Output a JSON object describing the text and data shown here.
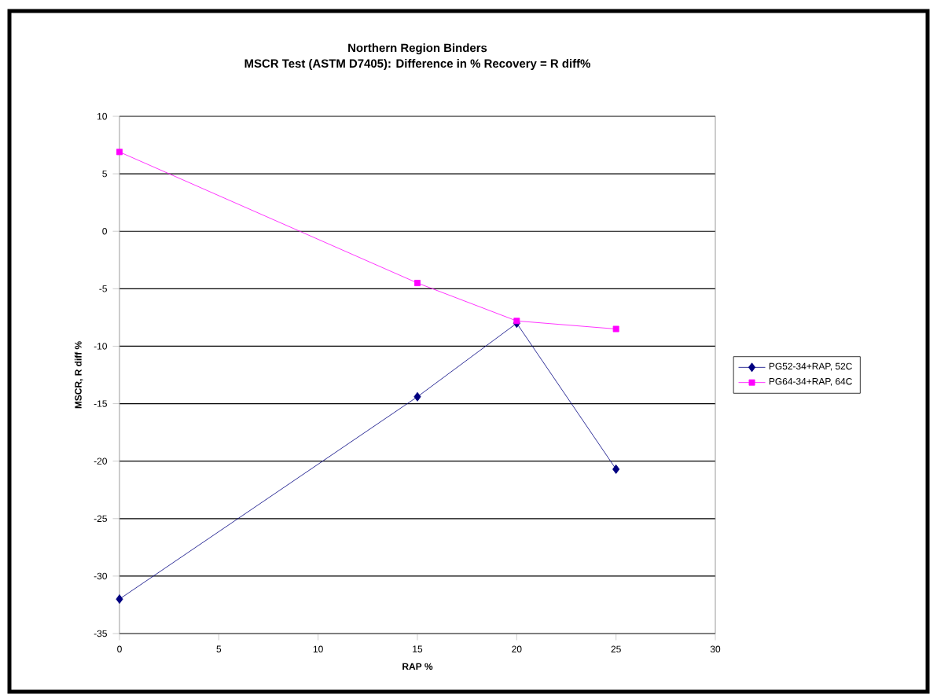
{
  "chart_data": {
    "type": "line",
    "title": "Northern Region Binders",
    "subtitle": "MSCR Test (ASTM D7405): Difference in % Recovery = R diff%",
    "xlabel": "RAP %",
    "ylabel": "MSCR, R diff %",
    "x": [
      0,
      15,
      20,
      25
    ],
    "series": [
      {
        "name": "PG52-34+RAP, 52C",
        "color": "#000080",
        "marker": "diamond",
        "values": [
          -32,
          -14.4,
          -8.0,
          -20.7
        ]
      },
      {
        "name": "PG64-34+RAP, 64C",
        "color": "#ff00ff",
        "marker": "square",
        "values": [
          6.9,
          -4.5,
          -7.8,
          -8.5
        ]
      }
    ],
    "xlim": [
      0,
      30
    ],
    "xticks": [
      0,
      5,
      10,
      15,
      20,
      25,
      30
    ],
    "ylim": [
      -35,
      10
    ],
    "yticks": [
      -35,
      -30,
      -25,
      -20,
      -15,
      -10,
      -5,
      0,
      5,
      10
    ],
    "grid": "y",
    "legend": "right",
    "line_style": "solid"
  }
}
